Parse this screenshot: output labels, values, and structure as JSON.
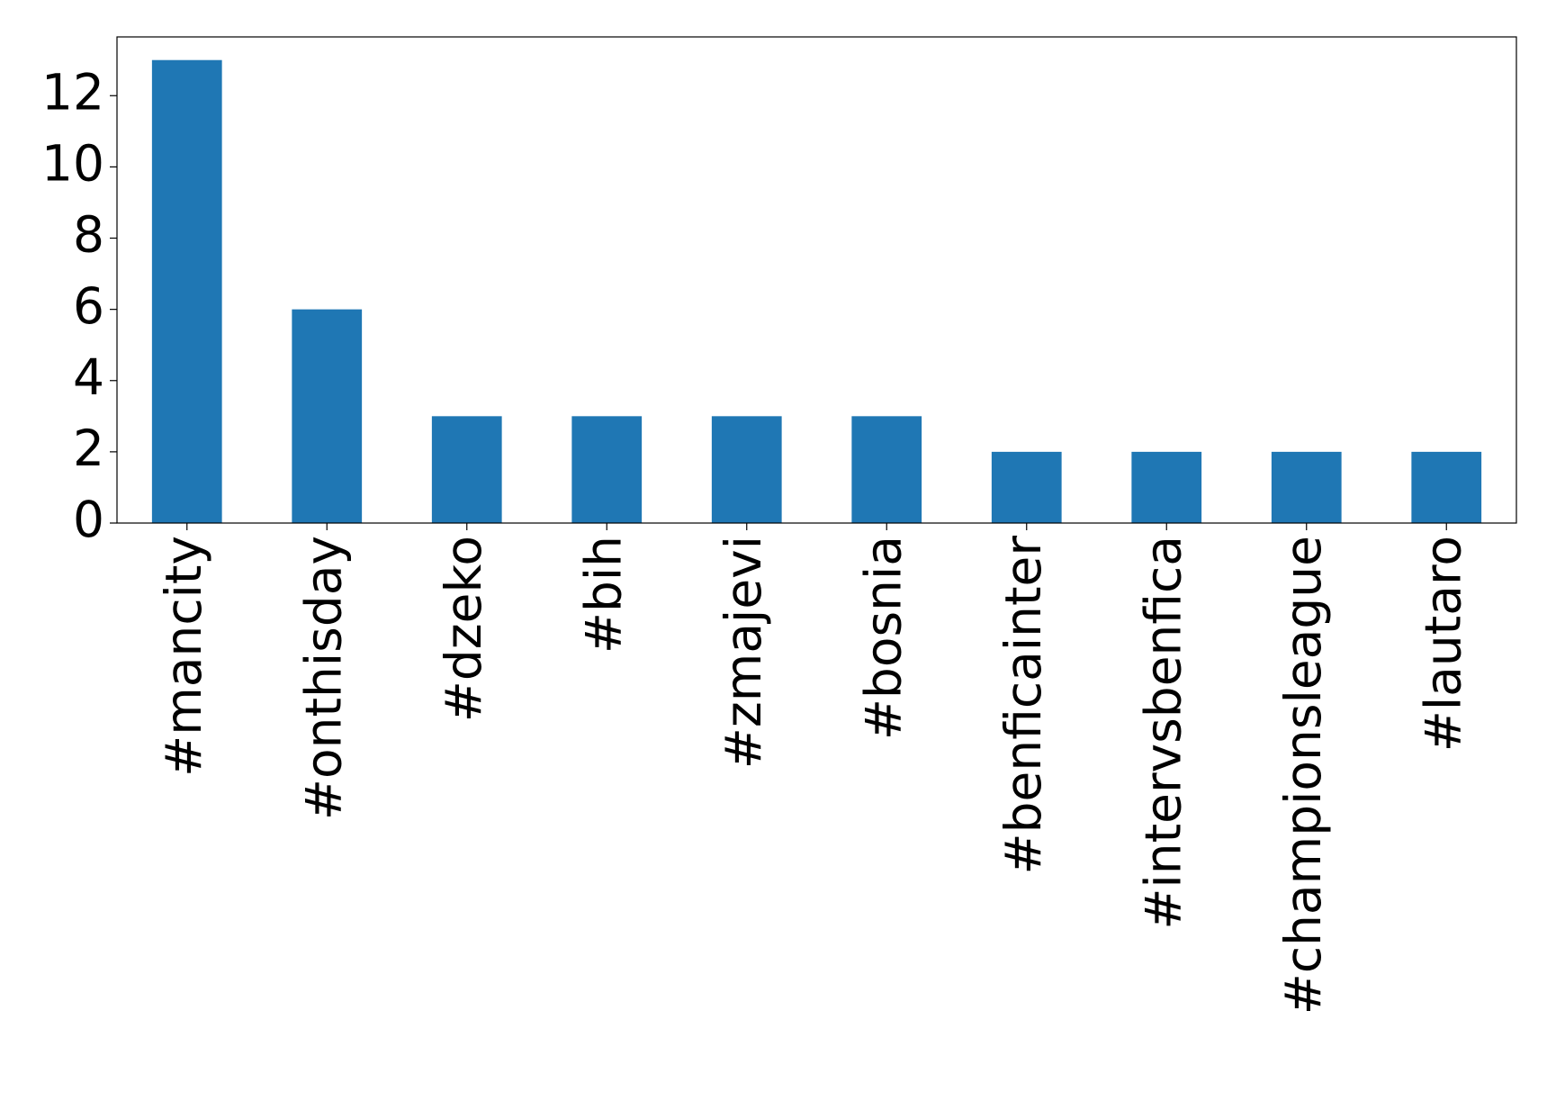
{
  "chart_data": {
    "type": "bar",
    "categories": [
      "#mancity",
      "#onthisday",
      "#dzeko",
      "#bih",
      "#zmajevi",
      "#bosnia",
      "#benficainter",
      "#intervsbenfica",
      "#championsleague",
      "#lautaro"
    ],
    "values": [
      13,
      6,
      3,
      3,
      3,
      3,
      2,
      2,
      2,
      2
    ],
    "color": "#1f77b4",
    "ylim": [
      0,
      13.65
    ],
    "yticks": [
      0,
      2,
      4,
      6,
      8,
      10,
      12
    ],
    "grid": false
  }
}
